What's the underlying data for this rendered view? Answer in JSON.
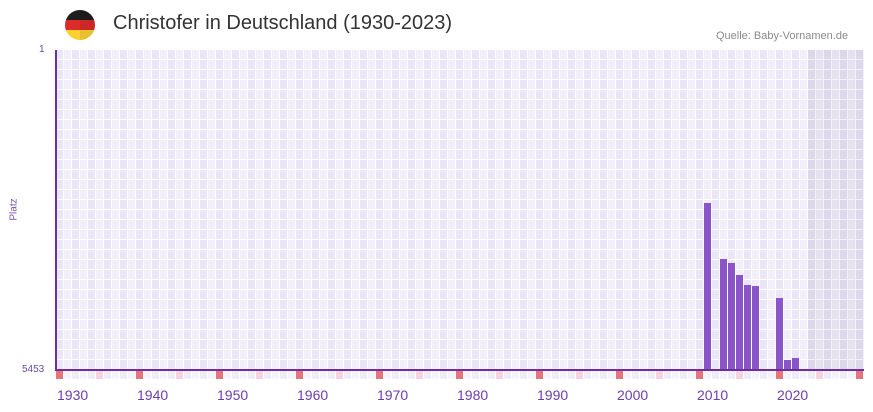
{
  "header": {
    "flag_icon": "germany-flag-icon",
    "title": "Christofer in Deutschland (1930-2023)",
    "source": "Quelle: Baby-Vornamen.de"
  },
  "axes": {
    "y_label": "Platz",
    "y_tick_top": "1",
    "y_tick_bottom": "5453"
  },
  "colors": {
    "bar": "#8b55c9",
    "axis": "#6b2fa0",
    "decade_marker": "#e8737c",
    "half_decade_marker": "#f5d5dd",
    "label": "#6e3fa8"
  },
  "chart_data": {
    "type": "bar",
    "title": "Christofer in Deutschland (1930-2023)",
    "xlabel": "",
    "ylabel": "Platz",
    "x_range": [
      1930,
      2030
    ],
    "x_ticks": [
      1930,
      1940,
      1950,
      1960,
      1970,
      1980,
      1990,
      2000,
      2010,
      2020
    ],
    "ylim": [
      5453,
      1
    ],
    "y_ticks": [
      1,
      5453
    ],
    "y_inverted": true,
    "future_shaded_from": 2024,
    "grid": true,
    "x": [
      2011,
      2013,
      2014,
      2015,
      2016,
      2017,
      2020,
      2021,
      2022
    ],
    "values": [
      2608,
      3562,
      3630,
      3834,
      4005,
      4022,
      4226,
      5283,
      5249
    ]
  }
}
